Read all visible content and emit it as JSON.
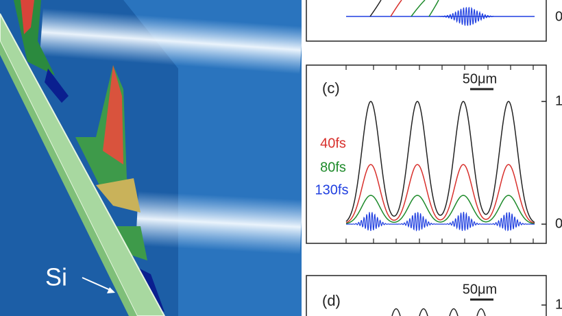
{
  "illustration": {
    "label": "Si"
  },
  "panel_b": {
    "tick_bottom": "0"
  },
  "panel_c": {
    "label": "(c)",
    "scale_bar": "50μm",
    "legend": [
      "40fs",
      "80fs",
      "130fs"
    ],
    "tick_top": "1",
    "tick_bottom": "0"
  },
  "panel_d": {
    "label": "(d)",
    "scale_bar": "50μm",
    "tick_top": "1"
  }
}
